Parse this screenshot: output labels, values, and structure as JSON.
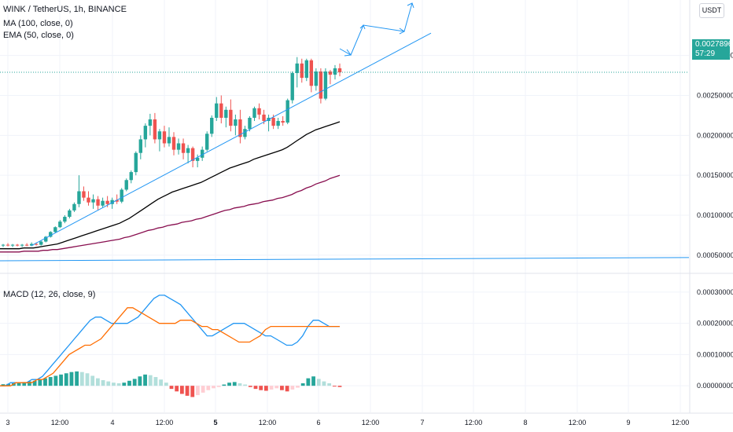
{
  "header": {
    "symbol_line": "WINK / TetherUS, 1h, BINANCE",
    "ma_line": "MA (100, close, 0)",
    "ema_line": "EMA (50, close, 0)",
    "macd_line": "MACD (12, 26, close, 9)",
    "currency": "USDT"
  },
  "price_badge": {
    "price": "0.00278962",
    "countdown": "57:29"
  },
  "colors": {
    "up": "#26a69a",
    "down": "#ef5350",
    "ema": "#000000",
    "ma": "#880e4f",
    "trendline": "#2196f3",
    "macd": "#2196f3",
    "signal": "#ff6d00",
    "hist_up_strong": "#26a69a",
    "hist_up_weak": "#b2dfdb",
    "hist_down_strong": "#ef5350",
    "hist_down_weak": "#ffcdd2"
  },
  "chart_data": [
    {
      "type": "candlestick",
      "title": "WINK / TetherUS, 1h, BINANCE",
      "ylim": [
        0.0004,
        0.0034
      ],
      "y_ticks": [
        "0.00300000",
        "0.00250000",
        "0.00200000",
        "0.00150000",
        "0.00100000",
        "0.00050000"
      ],
      "x_ticks": [
        "3",
        "12:00",
        "4",
        "12:00",
        "5",
        "12:00",
        "6",
        "12:00",
        "7",
        "12:00",
        "8",
        "12:00",
        "9",
        "12:00"
      ],
      "last_price": 0.00278962,
      "candles": [
        [
          0.00062,
          0.00064,
          0.0006,
          0.00063
        ],
        [
          0.00063,
          0.00065,
          0.00061,
          0.00062
        ],
        [
          0.00062,
          0.00064,
          0.0006,
          0.00063
        ],
        [
          0.00063,
          0.00064,
          0.00061,
          0.00062
        ],
        [
          0.00062,
          0.00064,
          0.0006,
          0.00063
        ],
        [
          0.00063,
          0.00065,
          0.00061,
          0.00062
        ],
        [
          0.00062,
          0.00066,
          0.00061,
          0.00064
        ],
        [
          0.00064,
          0.00066,
          0.00062,
          0.00063
        ],
        [
          0.00063,
          0.00068,
          0.00062,
          0.00067
        ],
        [
          0.00067,
          0.00074,
          0.00066,
          0.00073
        ],
        [
          0.00073,
          0.0008,
          0.00072,
          0.00079
        ],
        [
          0.00079,
          0.00086,
          0.00078,
          0.00085
        ],
        [
          0.00085,
          0.00094,
          0.00084,
          0.00092
        ],
        [
          0.00092,
          0.001,
          0.0009,
          0.00098
        ],
        [
          0.00098,
          0.00108,
          0.00096,
          0.00106
        ],
        [
          0.00106,
          0.00116,
          0.00104,
          0.00114
        ],
        [
          0.00114,
          0.0015,
          0.0011,
          0.0013
        ],
        [
          0.0013,
          0.00136,
          0.00118,
          0.00122
        ],
        [
          0.00122,
          0.0013,
          0.00112,
          0.00116
        ],
        [
          0.00116,
          0.00126,
          0.00108,
          0.0012
        ],
        [
          0.0012,
          0.00124,
          0.00106,
          0.00112
        ],
        [
          0.00112,
          0.00122,
          0.0011,
          0.00118
        ],
        [
          0.00118,
          0.00124,
          0.0011,
          0.00114
        ],
        [
          0.00114,
          0.00122,
          0.00108,
          0.00119
        ],
        [
          0.00119,
          0.00126,
          0.00114,
          0.00117
        ],
        [
          0.00117,
          0.00134,
          0.00115,
          0.00132
        ],
        [
          0.00132,
          0.00146,
          0.0013,
          0.00144
        ],
        [
          0.00144,
          0.00156,
          0.0014,
          0.00154
        ],
        [
          0.00154,
          0.0018,
          0.0015,
          0.00178
        ],
        [
          0.00178,
          0.002,
          0.0017,
          0.00195
        ],
        [
          0.00195,
          0.00215,
          0.00185,
          0.00212
        ],
        [
          0.00212,
          0.00227,
          0.002,
          0.0022
        ],
        [
          0.0022,
          0.00228,
          0.0019,
          0.00195
        ],
        [
          0.00195,
          0.00208,
          0.0018,
          0.00205
        ],
        [
          0.00205,
          0.00212,
          0.00185,
          0.0019
        ],
        [
          0.0019,
          0.0021,
          0.00186,
          0.00198
        ],
        [
          0.00198,
          0.00204,
          0.00175,
          0.00182
        ],
        [
          0.00182,
          0.00196,
          0.00176,
          0.0019
        ],
        [
          0.0019,
          0.00196,
          0.0017,
          0.00178
        ],
        [
          0.00178,
          0.00188,
          0.00165,
          0.00184
        ],
        [
          0.00184,
          0.00186,
          0.0016,
          0.00168
        ],
        [
          0.00168,
          0.00176,
          0.0016,
          0.00172
        ],
        [
          0.00172,
          0.00186,
          0.00168,
          0.00182
        ],
        [
          0.00182,
          0.00205,
          0.0018,
          0.00202
        ],
        [
          0.00202,
          0.00225,
          0.00198,
          0.00222
        ],
        [
          0.00222,
          0.00248,
          0.00218,
          0.0024
        ],
        [
          0.0024,
          0.0025,
          0.00215,
          0.00222
        ],
        [
          0.00222,
          0.00236,
          0.0021,
          0.00232
        ],
        [
          0.00232,
          0.00245,
          0.00205,
          0.00212
        ],
        [
          0.00212,
          0.00226,
          0.002,
          0.0022
        ],
        [
          0.0022,
          0.00232,
          0.0019,
          0.00198
        ],
        [
          0.00198,
          0.00212,
          0.00195,
          0.00208
        ],
        [
          0.00208,
          0.00224,
          0.00205,
          0.00222
        ],
        [
          0.00222,
          0.00236,
          0.00218,
          0.00234
        ],
        [
          0.00234,
          0.0024,
          0.0022,
          0.00226
        ],
        [
          0.00226,
          0.00232,
          0.00214,
          0.00218
        ],
        [
          0.00218,
          0.00226,
          0.00205,
          0.00222
        ],
        [
          0.00222,
          0.00226,
          0.00208,
          0.00212
        ],
        [
          0.00212,
          0.00222,
          0.00208,
          0.00218
        ],
        [
          0.00218,
          0.00224,
          0.00212,
          0.00216
        ],
        [
          0.00216,
          0.00246,
          0.00214,
          0.00244
        ],
        [
          0.00244,
          0.0028,
          0.0024,
          0.00278
        ],
        [
          0.00278,
          0.00298,
          0.0026,
          0.0029
        ],
        [
          0.0029,
          0.00296,
          0.00266,
          0.00272
        ],
        [
          0.00272,
          0.00296,
          0.00268,
          0.00294
        ],
        [
          0.00294,
          0.00296,
          0.00254,
          0.00262
        ],
        [
          0.00262,
          0.00284,
          0.00256,
          0.0028
        ],
        [
          0.0028,
          0.00284,
          0.0024,
          0.00246
        ],
        [
          0.00246,
          0.00284,
          0.00244,
          0.0028
        ],
        [
          0.0028,
          0.00282,
          0.00264,
          0.00276
        ],
        [
          0.00276,
          0.00288,
          0.0027,
          0.00284
        ],
        [
          0.00284,
          0.0029,
          0.00274,
          0.00279
        ]
      ],
      "ema_50": [
        0.00058,
        0.00058,
        0.00058,
        0.00058,
        0.00058,
        0.00059,
        0.00059,
        0.00059,
        0.0006,
        0.00061,
        0.00062,
        0.00063,
        0.00064,
        0.00066,
        0.00068,
        0.0007,
        0.00072,
        0.00074,
        0.00076,
        0.00078,
        0.0008,
        0.00082,
        0.00084,
        0.00086,
        0.00088,
        0.0009,
        0.00093,
        0.00096,
        0.001,
        0.00104,
        0.00108,
        0.00112,
        0.00116,
        0.0012,
        0.00123,
        0.00126,
        0.00129,
        0.00131,
        0.00133,
        0.00135,
        0.00137,
        0.00139,
        0.00141,
        0.00144,
        0.00147,
        0.0015,
        0.00153,
        0.00156,
        0.00159,
        0.00161,
        0.00163,
        0.00165,
        0.00167,
        0.0017,
        0.00172,
        0.00174,
        0.00176,
        0.00178,
        0.0018,
        0.00182,
        0.00185,
        0.00189,
        0.00193,
        0.00197,
        0.00201,
        0.00204,
        0.00207,
        0.00209,
        0.00211,
        0.00213,
        0.00215,
        0.00217
      ],
      "ma_100": [
        0.00054,
        0.00054,
        0.00054,
        0.00054,
        0.00054,
        0.00055,
        0.00055,
        0.00055,
        0.00055,
        0.00056,
        0.00056,
        0.00057,
        0.00057,
        0.00058,
        0.00059,
        0.0006,
        0.00061,
        0.00062,
        0.00063,
        0.00064,
        0.00065,
        0.00066,
        0.00067,
        0.00068,
        0.00069,
        0.0007,
        0.00072,
        0.00073,
        0.00075,
        0.00077,
        0.00079,
        0.00081,
        0.00082,
        0.00084,
        0.00085,
        0.00087,
        0.00088,
        0.00089,
        0.00091,
        0.00092,
        0.00093,
        0.00095,
        0.00096,
        0.00098,
        0.001,
        0.00102,
        0.00104,
        0.00106,
        0.00107,
        0.00109,
        0.0011,
        0.00111,
        0.00113,
        0.00114,
        0.00115,
        0.00117,
        0.00118,
        0.00119,
        0.00121,
        0.00122,
        0.00124,
        0.00126,
        0.00129,
        0.00131,
        0.00134,
        0.00136,
        0.00139,
        0.00141,
        0.00143,
        0.00146,
        0.00148,
        0.0015
      ]
    },
    {
      "type": "line",
      "title": "MACD (12, 26, close, 9)",
      "ylim": [
        -6e-05,
        0.00033
      ],
      "y_ticks": [
        "0.00030000",
        "0.00020000",
        "0.00010000",
        "0.00000000"
      ],
      "macd": [
        0.0,
        0.0,
        1e-05,
        1e-05,
        1e-05,
        1e-05,
        2e-05,
        2e-05,
        3e-05,
        5e-05,
        7e-05,
        9e-05,
        0.00011,
        0.00013,
        0.00015,
        0.00017,
        0.00019,
        0.00021,
        0.00022,
        0.00022,
        0.00021,
        0.0002,
        0.0002,
        0.0002,
        0.0002,
        0.00021,
        0.00022,
        0.00024,
        0.00026,
        0.00028,
        0.00029,
        0.00029,
        0.00028,
        0.00027,
        0.00026,
        0.00024,
        0.00022,
        0.0002,
        0.00018,
        0.00016,
        0.00016,
        0.00017,
        0.00018,
        0.00019,
        0.0002,
        0.0002,
        0.0002,
        0.00019,
        0.00018,
        0.00017,
        0.00016,
        0.00016,
        0.00015,
        0.00014,
        0.00013,
        0.00013,
        0.00014,
        0.00016,
        0.00019,
        0.00021,
        0.00021,
        0.0002,
        0.00019,
        0.00019,
        0.00019
      ],
      "signal": [
        0.0,
        0.0,
        0.0,
        1e-05,
        1e-05,
        1e-05,
        1e-05,
        2e-05,
        2e-05,
        3e-05,
        4e-05,
        6e-05,
        8e-05,
        0.0001,
        0.00011,
        0.00012,
        0.00013,
        0.00013,
        0.00014,
        0.00015,
        0.00017,
        0.00019,
        0.00021,
        0.00023,
        0.00025,
        0.00025,
        0.00024,
        0.00023,
        0.00022,
        0.00021,
        0.0002,
        0.0002,
        0.0002,
        0.0002,
        0.00021,
        0.00021,
        0.00021,
        0.0002,
        0.00019,
        0.00019,
        0.00018,
        0.00018,
        0.00017,
        0.00016,
        0.00015,
        0.00014,
        0.00014,
        0.00014,
        0.00015,
        0.00016,
        0.00018,
        0.00019,
        0.00019,
        0.00019,
        0.00019,
        0.00019,
        0.00019,
        0.00019,
        0.00019,
        0.00019,
        0.00019,
        0.00019,
        0.00019,
        0.00019,
        0.00019
      ],
      "histogram": [
        5e-06,
        6e-06,
        8e-06,
        1e-05,
        1.2e-05,
        1.4e-05,
        1.6e-05,
        2e-05,
        2.4e-05,
        2.8e-05,
        3.2e-05,
        3.6e-05,
        4e-05,
        4.4e-05,
        4.6e-05,
        4.4e-05,
        4e-05,
        3.2e-05,
        2.4e-05,
        1.8e-05,
        1.4e-05,
        1e-05,
        8e-06,
        1e-05,
        1.6e-05,
        2.2e-05,
        3e-05,
        3.6e-05,
        3.4e-05,
        2.8e-05,
        2e-05,
        1e-05,
        -1e-05,
        -1.8e-05,
        -2.6e-05,
        -3.2e-05,
        -3.6e-05,
        -3e-05,
        -2.2e-05,
        -1.4e-05,
        -8e-06,
        -4e-06,
        4e-06,
        1e-05,
        1.2e-05,
        8e-06,
        4e-06,
        -4e-06,
        -1e-05,
        -1.4e-05,
        -1.6e-05,
        -1.2e-05,
        -8e-06,
        -1.4e-05,
        -1.8e-05,
        -1.2e-05,
        -6e-06,
        8e-06,
        2.4e-05,
        3e-05,
        2.2e-05,
        1.4e-05,
        8e-06,
        -2e-06,
        -4e-06
      ]
    }
  ]
}
